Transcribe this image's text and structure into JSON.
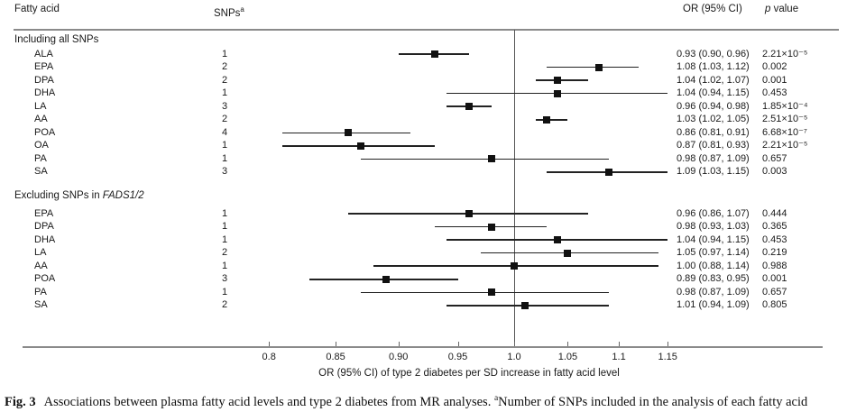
{
  "chart_data": {
    "type": "scatter",
    "variant": "forest-plot",
    "xscale": "log",
    "x_ticks": [
      0.8,
      0.85,
      0.9,
      0.95,
      1.0,
      1.05,
      1.1,
      1.15
    ],
    "x_tick_labels": [
      "0.8",
      "0.85",
      "0.90",
      "0.95",
      "1.0",
      "1.05",
      "1.1",
      "1.15"
    ],
    "reference_line": 1.0,
    "xlabel": "OR (95% CI) of type 2 diabetes per SD increase in fatty acid level",
    "marker_color": "#111111",
    "columns": {
      "fatty_acid": "Fatty acid",
      "snps": "SNPs",
      "snps_sup": "a",
      "or_ci": "OR (95% CI)",
      "p_italic": "p",
      "p_rest": " value"
    },
    "sections": [
      {
        "title": "Including all SNPs",
        "title_italic": "",
        "rows": [
          {
            "label": "ALA",
            "snps": "1",
            "or": 0.93,
            "lo": 0.9,
            "hi": 0.96,
            "or_ci": "0.93 (0.90, 0.96)",
            "p": "2.21×10⁻⁵"
          },
          {
            "label": "EPA",
            "snps": "2",
            "or": 1.08,
            "lo": 1.03,
            "hi": 1.12,
            "or_ci": "1.08 (1.03, 1.12)",
            "p": "0.002"
          },
          {
            "label": "DPA",
            "snps": "2",
            "or": 1.04,
            "lo": 1.02,
            "hi": 1.07,
            "or_ci": "1.04 (1.02, 1.07)",
            "p": "0.001"
          },
          {
            "label": "DHA",
            "snps": "1",
            "or": 1.04,
            "lo": 0.94,
            "hi": 1.15,
            "or_ci": "1.04 (0.94, 1.15)",
            "p": "0.453"
          },
          {
            "label": "LA",
            "snps": "3",
            "or": 0.96,
            "lo": 0.94,
            "hi": 0.98,
            "or_ci": "0.96 (0.94, 0.98)",
            "p": "1.85×10⁻⁴"
          },
          {
            "label": "AA",
            "snps": "2",
            "or": 1.03,
            "lo": 1.02,
            "hi": 1.05,
            "or_ci": "1.03 (1.02, 1.05)",
            "p": "2.51×10⁻⁵"
          },
          {
            "label": "POA",
            "snps": "4",
            "or": 0.86,
            "lo": 0.81,
            "hi": 0.91,
            "or_ci": "0.86 (0.81, 0.91)",
            "p": "6.68×10⁻⁷"
          },
          {
            "label": "OA",
            "snps": "1",
            "or": 0.87,
            "lo": 0.81,
            "hi": 0.93,
            "or_ci": "0.87 (0.81, 0.93)",
            "p": "2.21×10⁻⁵"
          },
          {
            "label": "PA",
            "snps": "1",
            "or": 0.98,
            "lo": 0.87,
            "hi": 1.09,
            "or_ci": "0.98 (0.87, 1.09)",
            "p": "0.657"
          },
          {
            "label": "SA",
            "snps": "3",
            "or": 1.09,
            "lo": 1.03,
            "hi": 1.15,
            "or_ci": "1.09 (1.03, 1.15)",
            "p": "0.003"
          }
        ]
      },
      {
        "title": "Excluding SNPs in ",
        "title_italic": "FADS1/2",
        "rows": [
          {
            "label": "EPA",
            "snps": "1",
            "or": 0.96,
            "lo": 0.86,
            "hi": 1.07,
            "or_ci": "0.96 (0.86, 1.07)",
            "p": "0.444"
          },
          {
            "label": "DPA",
            "snps": "1",
            "or": 0.98,
            "lo": 0.93,
            "hi": 1.03,
            "or_ci": "0.98 (0.93, 1.03)",
            "p": "0.365"
          },
          {
            "label": "DHA",
            "snps": "1",
            "or": 1.04,
            "lo": 0.94,
            "hi": 1.15,
            "or_ci": "1.04 (0.94, 1.15)",
            "p": "0.453"
          },
          {
            "label": "LA",
            "snps": "2",
            "or": 1.05,
            "lo": 0.97,
            "hi": 1.14,
            "or_ci": "1.05 (0.97, 1.14)",
            "p": "0.219"
          },
          {
            "label": "AA",
            "snps": "1",
            "or": 1.0,
            "lo": 0.88,
            "hi": 1.14,
            "or_ci": "1.00 (0.88, 1.14)",
            "p": "0.988"
          },
          {
            "label": "POA",
            "snps": "3",
            "or": 0.89,
            "lo": 0.83,
            "hi": 0.95,
            "or_ci": "0.89 (0.83, 0.95)",
            "p": "0.001"
          },
          {
            "label": "PA",
            "snps": "1",
            "or": 0.98,
            "lo": 0.87,
            "hi": 1.09,
            "or_ci": "0.98 (0.87, 1.09)",
            "p": "0.657"
          },
          {
            "label": "SA",
            "snps": "2",
            "or": 1.01,
            "lo": 0.94,
            "hi": 1.09,
            "or_ci": "1.01 (0.94, 1.09)",
            "p": "0.805"
          }
        ]
      }
    ]
  },
  "caption": {
    "fig_label": "Fig. 3",
    "text": "Associations between plasma fatty acid levels and type 2 diabetes from MR analyses.",
    "sup": "a",
    "text2": "Number of SNPs included in the analysis of each fatty acid"
  }
}
